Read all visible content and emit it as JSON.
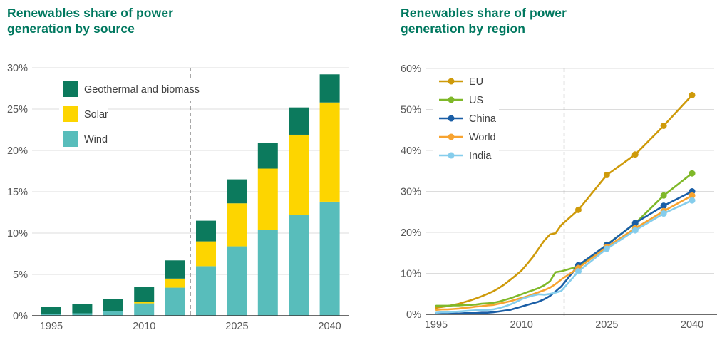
{
  "page": {
    "background": "#ffffff"
  },
  "colors": {
    "brand_title": "#00785f",
    "grid_line": "#dcdcdc",
    "axis_line": "#3c3c3c",
    "tick_label": "#595959",
    "legend_label": "#404040",
    "forecast_divider": "#a3a3a3"
  },
  "chart_data": [
    {
      "type": "bar",
      "stacked": true,
      "title": "Renewables share of power\ngeneration by source",
      "title_color": "#00785f",
      "categories": [
        1995,
        2000,
        2005,
        2010,
        2015,
        2020,
        2025,
        2030,
        2035,
        2040
      ],
      "series": [
        {
          "name": "Wind",
          "color": "#58bdbb",
          "values": [
            0.2,
            0.3,
            0.6,
            1.5,
            3.4,
            6.0,
            8.4,
            10.4,
            12.2,
            13.8
          ]
        },
        {
          "name": "Solar",
          "color": "#fdd500",
          "values": [
            0.0,
            0.0,
            0.0,
            0.2,
            1.1,
            3.0,
            5.2,
            7.4,
            9.7,
            12.0
          ]
        },
        {
          "name": "Geothermal and biomass",
          "color": "#0c7a5d",
          "values": [
            0.9,
            1.1,
            1.4,
            1.8,
            2.2,
            2.5,
            2.9,
            3.1,
            3.3,
            3.4
          ]
        }
      ],
      "legend": [
        "Geothermal and biomass",
        "Solar",
        "Wind"
      ],
      "legend_position": "top-left",
      "ylim": [
        0,
        30
      ],
      "y_ticks": [
        0,
        5,
        10,
        15,
        20,
        25,
        30
      ],
      "y_tick_labels": [
        "0%",
        "5%",
        "10%",
        "15%",
        "20%",
        "25%",
        "30%"
      ],
      "x_ticks": [
        1995,
        2010,
        2025,
        2040
      ],
      "x_tick_labels": [
        "1995",
        "2010",
        "2025",
        "2040"
      ],
      "divider_year": 2017.5,
      "grid": true
    },
    {
      "type": "line",
      "title": "Renewables share of power\ngeneration by region",
      "title_color": "#00785f",
      "x_history": [
        1995,
        1996,
        1997,
        1998,
        1999,
        2000,
        2001,
        2002,
        2003,
        2004,
        2005,
        2006,
        2007,
        2008,
        2009,
        2010,
        2011,
        2012,
        2013,
        2014,
        2015,
        2016,
        2017
      ],
      "x_forecast": [
        2020,
        2025,
        2030,
        2035,
        2040
      ],
      "series": [
        {
          "name": "EU",
          "color": "#ce9a0a",
          "history": [
            1.6,
            1.8,
            2.0,
            2.3,
            2.6,
            3.0,
            3.4,
            3.9,
            4.4,
            5.0,
            5.6,
            6.4,
            7.3,
            8.4,
            9.5,
            10.7,
            12.3,
            14.0,
            16.0,
            18.0,
            19.5,
            19.8,
            21.8
          ],
          "forecast": [
            25.5,
            34.0,
            39.0,
            46.0,
            53.5
          ]
        },
        {
          "name": "US",
          "color": "#7fb829",
          "history": [
            2.1,
            2.1,
            2.1,
            2.2,
            2.2,
            2.3,
            2.3,
            2.4,
            2.6,
            2.7,
            2.8,
            3.1,
            3.5,
            3.9,
            4.4,
            4.9,
            5.4,
            5.9,
            6.4,
            7.1,
            8.1,
            10.3,
            10.5
          ],
          "forecast": [
            11.7,
            17.0,
            22.2,
            29.0,
            34.4
          ]
        },
        {
          "name": "China",
          "color": "#1a5ea6",
          "history": [
            0.2,
            0.2,
            0.2,
            0.2,
            0.2,
            0.3,
            0.3,
            0.3,
            0.4,
            0.4,
            0.5,
            0.7,
            0.9,
            1.1,
            1.5,
            1.9,
            2.3,
            2.7,
            3.1,
            3.7,
            4.5,
            5.6,
            6.8
          ],
          "forecast": [
            12.0,
            16.9,
            22.3,
            26.5,
            30.0
          ]
        },
        {
          "name": "World",
          "color": "#f7a330",
          "history": [
            1.1,
            1.2,
            1.2,
            1.3,
            1.4,
            1.6,
            1.7,
            1.9,
            2.0,
            2.2,
            2.3,
            2.6,
            2.9,
            3.2,
            3.6,
            4.0,
            4.4,
            4.9,
            5.4,
            5.9,
            6.5,
            7.4,
            8.5
          ],
          "forecast": [
            11.3,
            16.4,
            21.0,
            25.2,
            29.0
          ]
        },
        {
          "name": "India",
          "color": "#85cdec",
          "history": [
            0.4,
            0.5,
            0.5,
            0.6,
            0.7,
            0.8,
            0.9,
            1.0,
            1.1,
            1.1,
            1.2,
            1.5,
            1.9,
            2.4,
            3.0,
            3.7,
            4.2,
            4.6,
            4.9,
            4.8,
            5.0,
            5.3,
            5.7
          ],
          "forecast": [
            10.5,
            16.0,
            20.5,
            24.6,
            27.8
          ]
        }
      ],
      "legend": [
        "EU",
        "US",
        "China",
        "World",
        "India"
      ],
      "legend_position": "top-left",
      "ylim": [
        0,
        60
      ],
      "y_ticks": [
        0,
        10,
        20,
        30,
        40,
        50,
        60
      ],
      "y_tick_labels": [
        "0%",
        "10%",
        "20%",
        "30%",
        "40%",
        "50%",
        "60%"
      ],
      "x_ticks": [
        1995,
        2010,
        2025,
        2040
      ],
      "x_tick_labels": [
        "1995",
        "2010",
        "2025",
        "2040"
      ],
      "divider_year": 2017.5,
      "grid": true
    }
  ]
}
